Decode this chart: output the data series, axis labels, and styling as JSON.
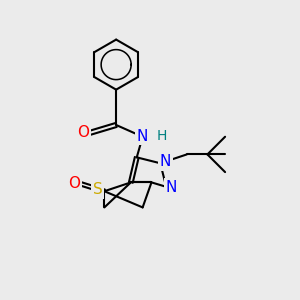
{
  "bg_color": "#ebebeb",
  "bond_color": "#000000",
  "bond_width": 1.5,
  "atom_colors": {
    "O": "#ff0000",
    "N": "#0000ff",
    "S": "#ccaa00",
    "H": "#008080",
    "C": "#000000"
  },
  "font_size_atom": 10,
  "fig_width": 3.0,
  "fig_height": 3.0,
  "dpi": 100
}
